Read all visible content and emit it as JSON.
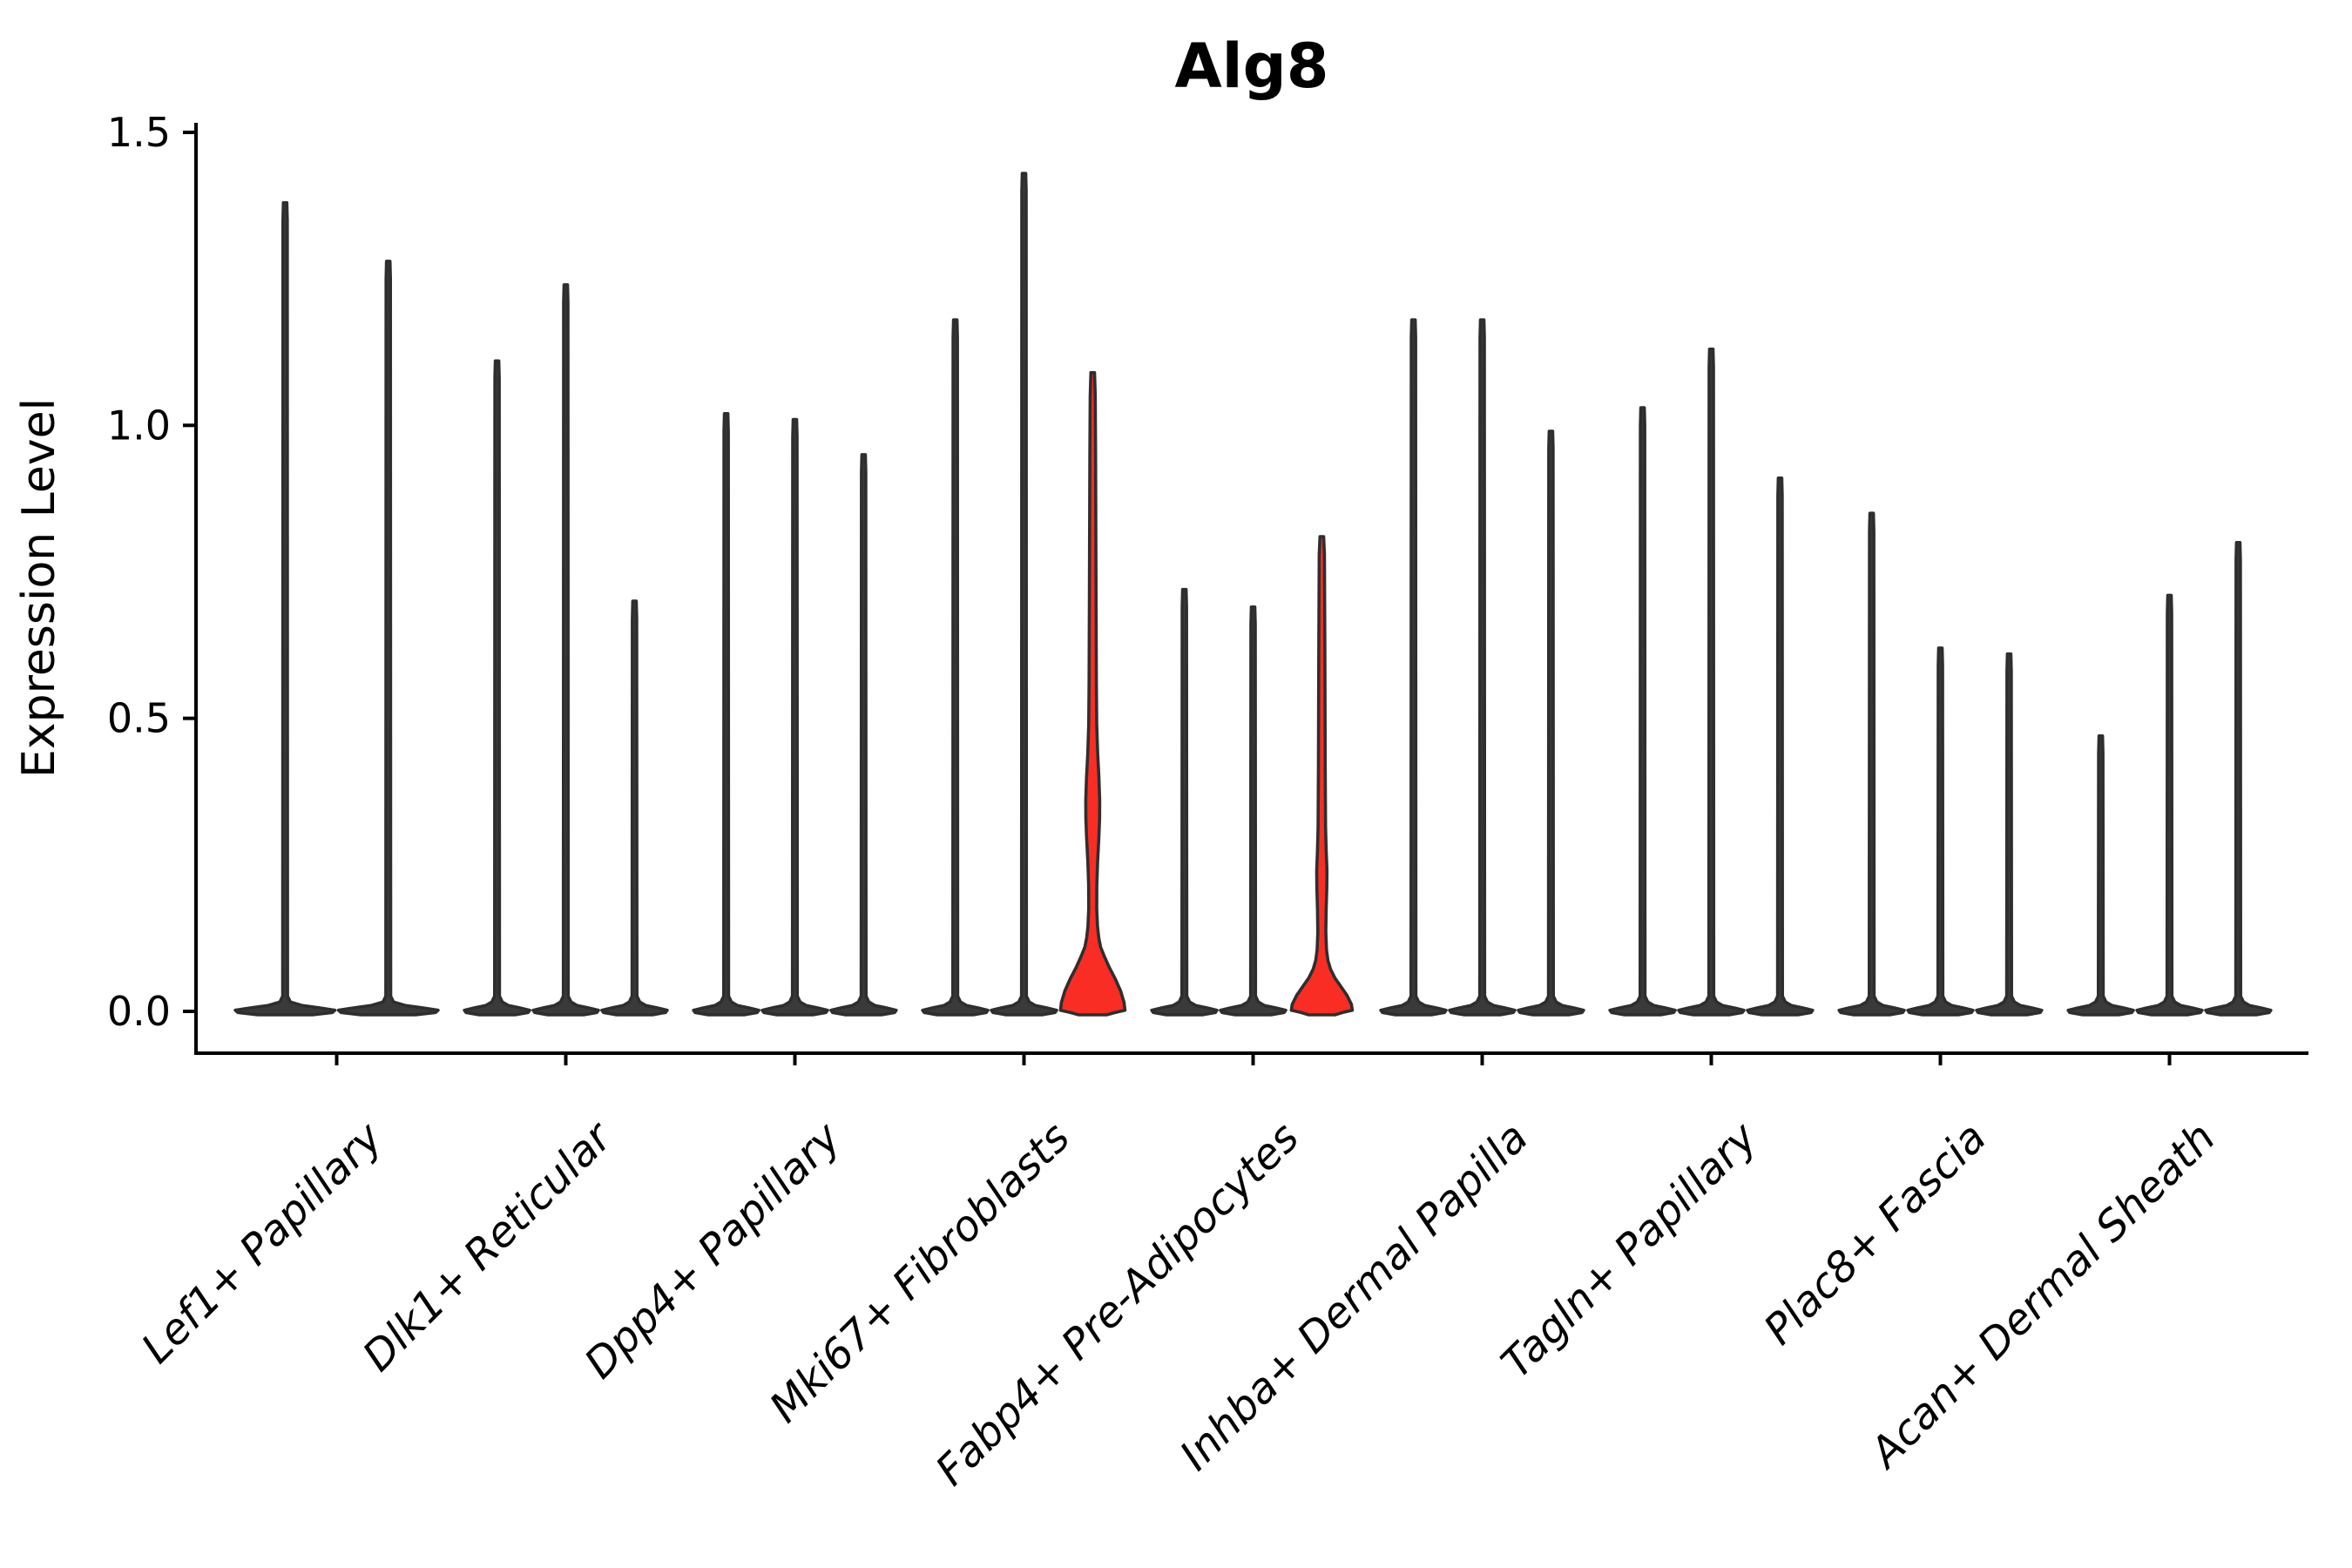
{
  "title": "Alg8",
  "y_axis": {
    "label": "Expression Level",
    "tick_labels": [
      "0.0",
      "0.5",
      "1.0",
      "1.5"
    ],
    "tick_values": [
      0.0,
      0.5,
      1.0,
      1.5
    ]
  },
  "x_axis": {
    "categories": [
      "Lef1+ Papillary",
      "Dlk1+ Reticular",
      "Dpp4+ Papillary",
      "Mki67+ Fibroblasts",
      "Fabp4+ Pre-Adipocytes",
      "Inhba+ Dermal Papilla",
      "Tagln+ Papillary",
      "Plac8+ Fascia",
      "Acan+ Dermal Sheath"
    ]
  },
  "chart_data": {
    "type": "violin",
    "title": "Alg8",
    "xlabel": "",
    "ylabel": "Expression Level",
    "ylim": [
      -0.076,
      1.523
    ],
    "yticks": [
      0.0,
      0.5,
      1.0,
      1.5
    ],
    "grid": false,
    "legend_position": "none",
    "categories": [
      "Lef1+ Papillary",
      "Dlk1+ Reticular",
      "Dpp4+ Papillary",
      "Mki67+ Fibroblasts",
      "Fabp4+ Pre-Adipocytes",
      "Inhba+ Dermal Papilla",
      "Tagln+ Papillary",
      "Plac8+ Fascia",
      "Acan+ Dermal Sheath"
    ],
    "groups": [
      {
        "category": "Lef1+ Papillary",
        "violins": [
          {
            "offset": -0.225,
            "max": 1.38
          },
          {
            "offset": 0.225,
            "max": 1.28
          }
        ]
      },
      {
        "category": "Dlk1+ Reticular",
        "violins": [
          {
            "offset": -0.3,
            "max": 1.11
          },
          {
            "offset": 0.0,
            "max": 1.24
          },
          {
            "offset": 0.3,
            "max": 0.7
          }
        ]
      },
      {
        "category": "Dpp4+ Papillary",
        "violins": [
          {
            "offset": -0.3,
            "max": 1.02
          },
          {
            "offset": 0.0,
            "max": 1.01
          },
          {
            "offset": 0.3,
            "max": 0.95
          }
        ]
      },
      {
        "category": "Mki67+ Fibroblasts",
        "violins": [
          {
            "offset": -0.3,
            "max": 1.18
          },
          {
            "offset": 0.0,
            "max": 1.43
          },
          {
            "offset": 0.3,
            "max": 1.09,
            "highlighted": true,
            "profile": [
              [
                -0.006,
                16
              ],
              [
                -0.002,
                26
              ],
              [
                0.002,
                37
              ],
              [
                0.015,
                36
              ],
              [
                0.035,
                32
              ],
              [
                0.055,
                26
              ],
              [
                0.075,
                19
              ],
              [
                0.095,
                13
              ],
              [
                0.11,
                9
              ],
              [
                0.125,
                7
              ],
              [
                0.145,
                5.5
              ],
              [
                0.175,
                4.6
              ],
              [
                0.215,
                4.7
              ],
              [
                0.255,
                5.6
              ],
              [
                0.295,
                7
              ],
              [
                0.33,
                7.9
              ],
              [
                0.36,
                8
              ],
              [
                0.4,
                7.1
              ],
              [
                0.44,
                5.7
              ],
              [
                0.49,
                4.6
              ],
              [
                0.56,
                4.2
              ],
              [
                0.72,
                3.8
              ],
              [
                0.95,
                3.3
              ],
              [
                1.05,
                2.9
              ],
              [
                1.09,
                2.1
              ]
            ]
          }
        ]
      },
      {
        "category": "Fabp4+ Pre-Adipocytes",
        "violins": [
          {
            "offset": -0.3,
            "max": 0.72
          },
          {
            "offset": 0.0,
            "max": 0.69
          },
          {
            "offset": 0.3,
            "max": 0.81,
            "highlighted": true,
            "profile": [
              [
                -0.006,
                15
              ],
              [
                -0.002,
                24
              ],
              [
                0.002,
                35
              ],
              [
                0.012,
                34
              ],
              [
                0.027,
                29
              ],
              [
                0.042,
                22
              ],
              [
                0.057,
                15
              ],
              [
                0.072,
                10
              ],
              [
                0.087,
                7
              ],
              [
                0.105,
                5.4
              ],
              [
                0.135,
                4.6
              ],
              [
                0.175,
                5.0
              ],
              [
                0.21,
                5.7
              ],
              [
                0.24,
                5.9
              ],
              [
                0.275,
                5.0
              ],
              [
                0.315,
                4.3
              ],
              [
                0.42,
                3.9
              ],
              [
                0.62,
                3.5
              ],
              [
                0.78,
                3.0
              ],
              [
                0.81,
                2.1
              ]
            ]
          }
        ]
      },
      {
        "category": "Inhba+ Dermal Papilla",
        "violins": [
          {
            "offset": -0.3,
            "max": 1.18
          },
          {
            "offset": 0.0,
            "max": 1.18
          },
          {
            "offset": 0.3,
            "max": 0.99
          }
        ]
      },
      {
        "category": "Tagln+ Papillary",
        "violins": [
          {
            "offset": -0.3,
            "max": 1.03
          },
          {
            "offset": 0.0,
            "max": 1.13
          },
          {
            "offset": 0.3,
            "max": 0.91
          }
        ]
      },
      {
        "category": "Plac8+ Fascia",
        "violins": [
          {
            "offset": -0.3,
            "max": 0.85
          },
          {
            "offset": 0.0,
            "max": 0.62
          },
          {
            "offset": 0.3,
            "max": 0.61
          }
        ]
      },
      {
        "category": "Acan+ Dermal Sheath",
        "violins": [
          {
            "offset": -0.3,
            "max": 0.47
          },
          {
            "offset": 0.0,
            "max": 0.71
          },
          {
            "offset": 0.3,
            "max": 0.8
          }
        ]
      }
    ],
    "colors": {
      "violin_stroke": "#2e2e2e",
      "violin_fill": "#3a3a3a",
      "highlight_fill": "#fa2d25",
      "axis": "#000000",
      "background": "#ffffff"
    }
  }
}
